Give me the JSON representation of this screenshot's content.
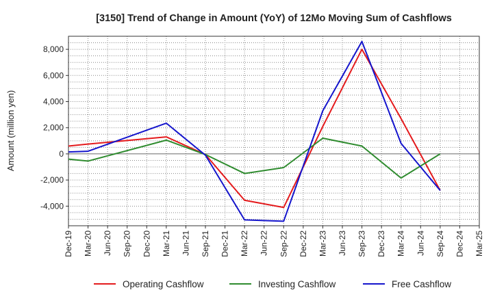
{
  "chart_data": {
    "type": "line",
    "title": "[3150]  Trend of Change in Amount (YoY) of 12Mo Moving Sum of Cashflows",
    "xlabel": "",
    "ylabel": "Amount (million yen)",
    "ylim": [
      -5500,
      9000
    ],
    "yticks": [
      -4000,
      -2000,
      0,
      2000,
      4000,
      6000,
      8000
    ],
    "ytick_labels": [
      "-4,000",
      "-2,000",
      "0",
      "2,000",
      "4,000",
      "6,000",
      "8,000"
    ],
    "categories": [
      "Dec-19",
      "Mar-20",
      "Jun-20",
      "Sep-20",
      "Dec-20",
      "Mar-21",
      "Jun-21",
      "Sep-21",
      "Dec-21",
      "Mar-22",
      "Jun-22",
      "Sep-22",
      "Dec-22",
      "Mar-23",
      "Jun-23",
      "Sep-23",
      "Dec-23",
      "Mar-24",
      "Jun-24",
      "Sep-24",
      "Dec-24",
      "Mar-25"
    ],
    "grid": true,
    "legend_position": "bottom",
    "series": [
      {
        "name": "Operating Cashflow",
        "color": "#e41a1c",
        "values": [
          600,
          750,
          null,
          null,
          null,
          1300,
          null,
          -50,
          null,
          -3550,
          null,
          -4100,
          null,
          2100,
          null,
          8000,
          null,
          2700,
          null,
          -2800,
          null,
          null
        ]
      },
      {
        "name": "Investing Cashflow",
        "color": "#2e8b2e",
        "values": [
          -400,
          -550,
          null,
          null,
          null,
          1050,
          null,
          -50,
          null,
          -1500,
          null,
          -1050,
          null,
          1200,
          null,
          600,
          null,
          -1850,
          null,
          0,
          null,
          null
        ]
      },
      {
        "name": "Free Cashflow",
        "color": "#1414cc",
        "values": [
          150,
          200,
          null,
          null,
          null,
          2350,
          null,
          -100,
          null,
          -5050,
          null,
          -5150,
          null,
          3300,
          null,
          8600,
          null,
          800,
          null,
          -2800,
          null,
          null
        ]
      }
    ]
  }
}
